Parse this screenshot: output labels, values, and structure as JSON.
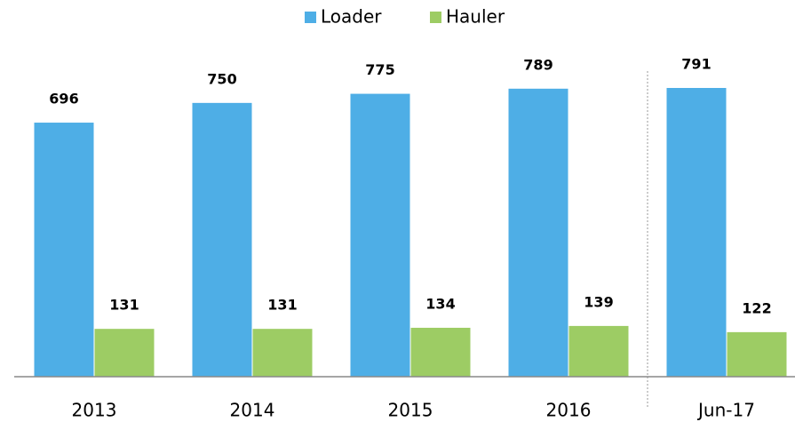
{
  "chart_data": {
    "type": "bar",
    "categories": [
      "2013",
      "2014",
      "2015",
      "2016",
      "Jun-17"
    ],
    "series": [
      {
        "name": "Loader",
        "color": "#4eaee6",
        "values": [
          696,
          750,
          775,
          789,
          791
        ]
      },
      {
        "name": "Hauler",
        "color": "#9dcc64",
        "values": [
          131,
          131,
          134,
          139,
          122
        ]
      }
    ],
    "legend": "top"
  }
}
